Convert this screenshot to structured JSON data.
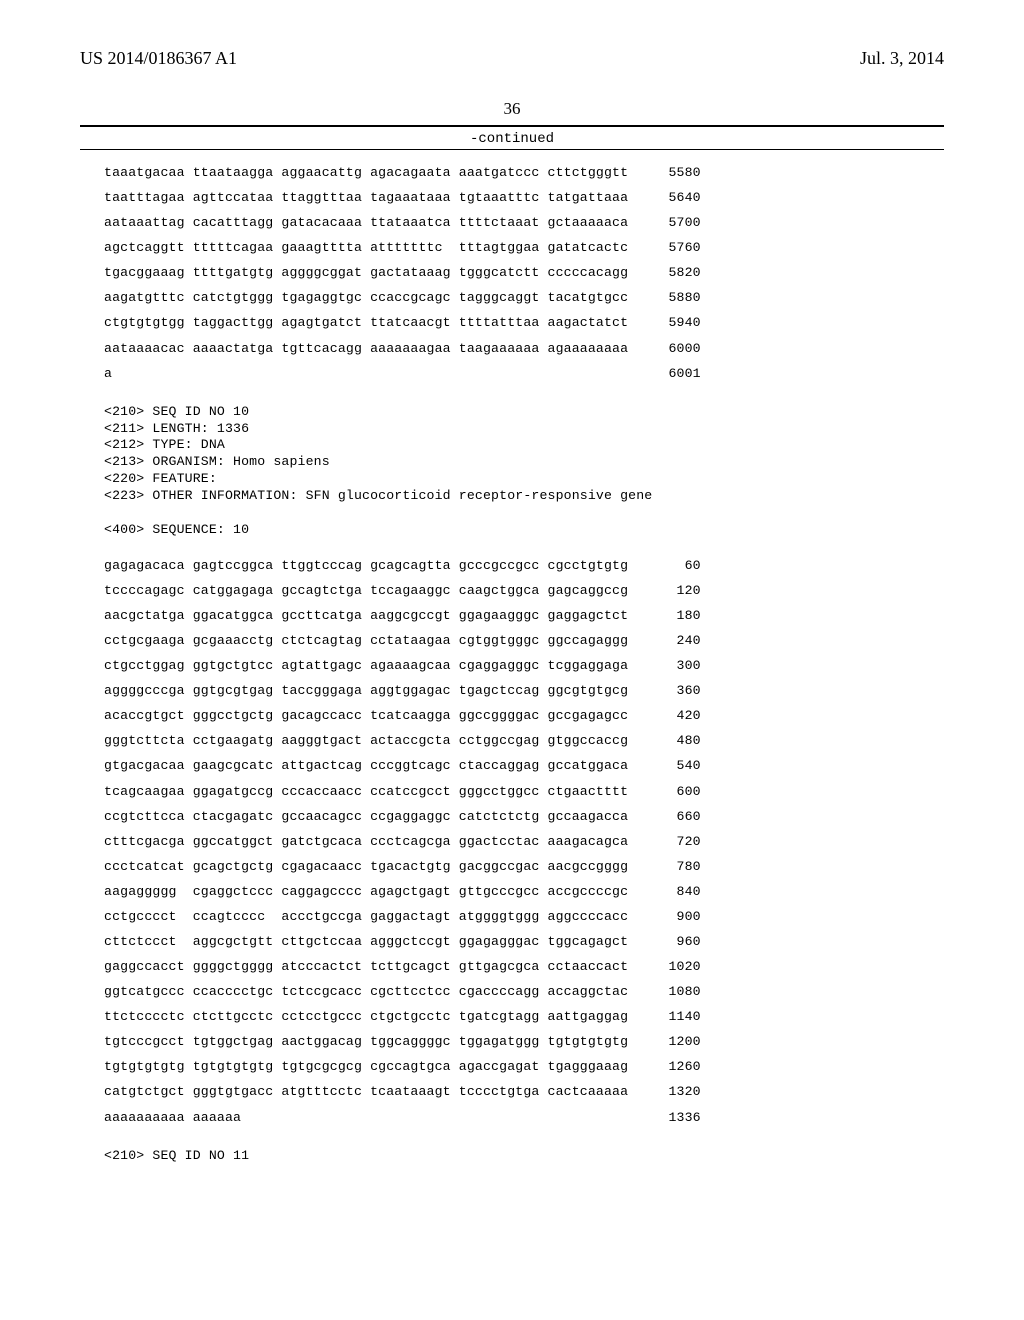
{
  "header": {
    "publication_number": "US 2014/0186367 A1",
    "publication_date": "Jul. 3, 2014",
    "page_number": "36",
    "continued_label": "-continued"
  },
  "sequence_top": {
    "lines": [
      {
        "cols": [
          "taaatgacaa",
          "ttaataagga",
          "aggaacattg",
          "agacagaata",
          "aaatgatccc",
          "cttctgggtt"
        ],
        "pos": "5580"
      },
      {
        "cols": [
          "taatttagaa",
          "agttccataa",
          "ttaggtttaa",
          "tagaaataaa",
          "tgtaaatttc",
          "tatgattaaa"
        ],
        "pos": "5640"
      },
      {
        "cols": [
          "aataaattag",
          "cacatttagg",
          "gatacacaaa",
          "ttataaatca",
          "ttttctaaat",
          "gctaaaaaca"
        ],
        "pos": "5700"
      },
      {
        "cols": [
          "agctcaggtt",
          "tttttcagaa",
          "gaaagtttta",
          "atttttttc",
          "tttagtggaa",
          "gatatcactc"
        ],
        "pos": "5760"
      },
      {
        "cols": [
          "tgacggaaag",
          "ttttgatgtg",
          "aggggcggat",
          "gactataaag",
          "tgggcatctt",
          "cccccacagg"
        ],
        "pos": "5820"
      },
      {
        "cols": [
          "aagatgtttc",
          "catctgtggg",
          "tgagaggtgc",
          "ccaccgcagc",
          "tagggcaggt",
          "tacatgtgcc"
        ],
        "pos": "5880"
      },
      {
        "cols": [
          "ctgtgtgtgg",
          "taggacttgg",
          "agagtgatct",
          "ttatcaacgt",
          "ttttatttaa",
          "aagactatct"
        ],
        "pos": "5940"
      },
      {
        "cols": [
          "aataaaacac",
          "aaaactatga",
          "tgttcacagg",
          "aaaaaaagaa",
          "taagaaaaaa",
          "agaaaaaaaa"
        ],
        "pos": "6000"
      },
      {
        "cols": [
          "a",
          "",
          "",
          "",
          "",
          ""
        ],
        "pos": "6001"
      }
    ]
  },
  "meta_block": {
    "lines": [
      "<210> SEQ ID NO 10",
      "<211> LENGTH: 1336",
      "<212> TYPE: DNA",
      "<213> ORGANISM: Homo sapiens",
      "<220> FEATURE:",
      "<223> OTHER INFORMATION: SFN glucocorticoid receptor-responsive gene",
      "",
      "<400> SEQUENCE: 10"
    ]
  },
  "sequence_main": {
    "lines": [
      {
        "cols": [
          "gagagacaca",
          "gagtccggca",
          "ttggtcccag",
          "gcagcagtta",
          "gcccgccgcc",
          "cgcctgtgtg"
        ],
        "pos": "60"
      },
      {
        "cols": [
          "tccccagagc",
          "catggagaga",
          "gccagtctga",
          "tccagaaggc",
          "caagctggca",
          "gagcaggccg"
        ],
        "pos": "120"
      },
      {
        "cols": [
          "aacgctatga",
          "ggacatggca",
          "gccttcatga",
          "aaggcgccgt",
          "ggagaagggc",
          "gaggagctct"
        ],
        "pos": "180"
      },
      {
        "cols": [
          "cctgcgaaga",
          "gcgaaacctg",
          "ctctcagtag",
          "cctataagaa",
          "cgtggtgggc",
          "ggccagaggg"
        ],
        "pos": "240"
      },
      {
        "cols": [
          "ctgcctggag",
          "ggtgctgtcc",
          "agtattgagc",
          "agaaaagcaa",
          "cgaggagggc",
          "tcggaggaga"
        ],
        "pos": "300"
      },
      {
        "cols": [
          "aggggcccga",
          "ggtgcgtgag",
          "taccgggaga",
          "aggtggagac",
          "tgagctccag",
          "ggcgtgtgcg"
        ],
        "pos": "360"
      },
      {
        "cols": [
          "acaccgtgct",
          "gggcctgctg",
          "gacagccacc",
          "tcatcaagga",
          "ggccggggac",
          "gccgagagcc"
        ],
        "pos": "420"
      },
      {
        "cols": [
          "gggtcttcta",
          "cctgaagatg",
          "aagggtgact",
          "actaccgcta",
          "cctggccgag",
          "gtggccaccg"
        ],
        "pos": "480"
      },
      {
        "cols": [
          "gtgacgacaa",
          "gaagcgcatc",
          "attgactcag",
          "cccggtcagc",
          "ctaccaggag",
          "gccatggaca"
        ],
        "pos": "540"
      },
      {
        "cols": [
          "tcagcaagaa",
          "ggagatgccg",
          "cccaccaacc",
          "ccatccgcct",
          "gggcctggcc",
          "ctgaactttt"
        ],
        "pos": "600"
      },
      {
        "cols": [
          "ccgtcttcca",
          "ctacgagatc",
          "gccaacagcc",
          "ccgaggaggc",
          "catctctctg",
          "gccaagacca"
        ],
        "pos": "660"
      },
      {
        "cols": [
          "ctttcgacga",
          "ggccatggct",
          "gatctgcaca",
          "ccctcagcga",
          "ggactcctac",
          "aaagacagca"
        ],
        "pos": "720"
      },
      {
        "cols": [
          "ccctcatcat",
          "gcagctgctg",
          "cgagacaacc",
          "tgacactgtg",
          "gacggccgac",
          "aacgccgggg"
        ],
        "pos": "780"
      },
      {
        "cols": [
          "aagaggggg",
          "cgaggctccc",
          "caggagcccc",
          "agagctgagt",
          "gttgcccgcc",
          "accgccccgc"
        ],
        "pos": "840"
      },
      {
        "cols": [
          "cctgcccct",
          "ccagtcccc",
          "accctgccga",
          "gaggactagt",
          "atggggtggg",
          "aggccccacc"
        ],
        "pos": "900"
      },
      {
        "cols": [
          "cttctccct",
          "aggcgctgtt",
          "cttgctccaa",
          "agggctccgt",
          "ggagagggac",
          "tggcagagct"
        ],
        "pos": "960"
      },
      {
        "cols": [
          "gaggccacct",
          "ggggctgggg",
          "atcccactct",
          "tcttgcagct",
          "gttgagcgca",
          "cctaaccact"
        ],
        "pos": "1020"
      },
      {
        "cols": [
          "ggtcatgccc",
          "ccacccctgc",
          "tctccgcacc",
          "cgcttcctcc",
          "cgaccccagg",
          "accaggctac"
        ],
        "pos": "1080"
      },
      {
        "cols": [
          "ttctcccctc",
          "ctcttgcctc",
          "cctcctgccc",
          "ctgctgcctc",
          "tgatcgtagg",
          "aattgaggag"
        ],
        "pos": "1140"
      },
      {
        "cols": [
          "tgtcccgcct",
          "tgtggctgag",
          "aactggacag",
          "tggcaggggc",
          "tggagatggg",
          "tgtgtgtgtg"
        ],
        "pos": "1200"
      },
      {
        "cols": [
          "tgtgtgtgtg",
          "tgtgtgtgtg",
          "tgtgcgcgcg",
          "cgccagtgca",
          "agaccgagat",
          "tgagggaaag"
        ],
        "pos": "1260"
      },
      {
        "cols": [
          "catgtctgct",
          "gggtgtgacc",
          "atgtttcctc",
          "tcaataaagt",
          "tcccctgtga",
          "cactcaaaaa"
        ],
        "pos": "1320"
      },
      {
        "cols": [
          "aaaaaaaaaa",
          "aaaaaa",
          "",
          "",
          "",
          ""
        ],
        "pos": "1336"
      }
    ]
  },
  "footer_meta": {
    "lines": [
      "<210> SEQ ID NO 11"
    ]
  },
  "layout": {
    "col_width_chars": 11,
    "pos_pad_chars": 6
  }
}
